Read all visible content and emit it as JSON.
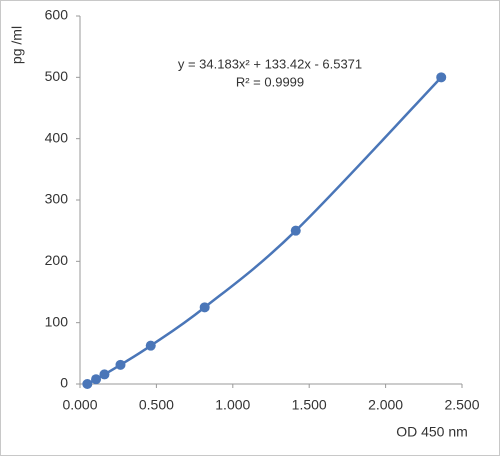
{
  "chart_data": {
    "type": "scatter",
    "x_label": "OD 450 nm",
    "y_label": "pg /ml",
    "annotations": [
      "y = 34.183x² + 133.42x - 6.5371",
      "R² = 0.9999"
    ],
    "x": [
      0.048,
      0.105,
      0.16,
      0.265,
      0.463,
      0.816,
      1.412,
      2.364
    ],
    "values": [
      0,
      7.8,
      15.6,
      31.25,
      62.5,
      125,
      250,
      500
    ],
    "color": "#4a76b8",
    "xlim": [
      0,
      2.5
    ],
    "ylim": [
      0,
      600
    ],
    "xticks": [
      {
        "value": 0,
        "label": "0.000"
      },
      {
        "value": 0.5,
        "label": "0.500"
      },
      {
        "value": 1,
        "label": "1.000"
      },
      {
        "value": 1.5,
        "label": "1.500"
      },
      {
        "value": 2,
        "label": "2.000"
      },
      {
        "value": 2.5,
        "label": "2.500"
      }
    ],
    "yticks": [
      0,
      100,
      200,
      300,
      400,
      500,
      600
    ]
  }
}
